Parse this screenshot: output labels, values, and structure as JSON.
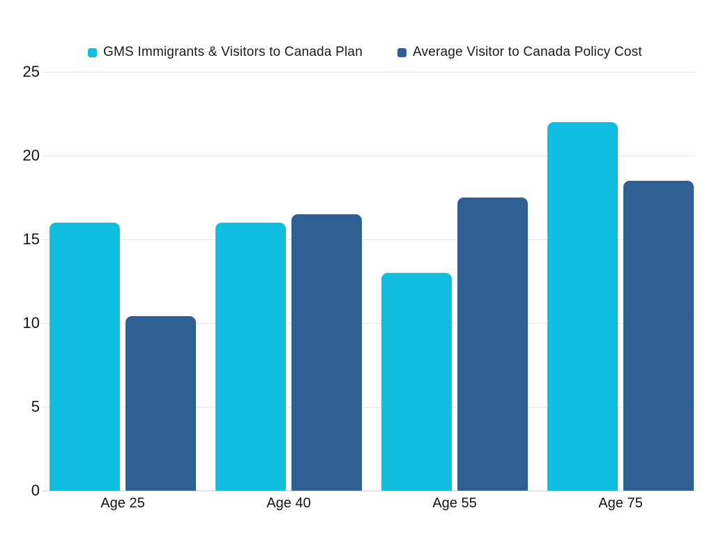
{
  "chart_data": {
    "type": "bar",
    "title": "",
    "xlabel": "",
    "ylabel": "",
    "categories": [
      "Age 25",
      "Age 40",
      "Age 55",
      "Age 75"
    ],
    "series": [
      {
        "name": "GMS Immigrants & Visitors to Canada Plan",
        "color": "#10bedf",
        "values": [
          16,
          16,
          13,
          22
        ]
      },
      {
        "name": "Average Visitor to Canada Policy Cost",
        "color": "#305f94",
        "values": [
          10.4,
          16.5,
          17.5,
          18.5
        ]
      }
    ],
    "y_ticks": [
      0,
      5,
      10,
      15,
      20,
      25
    ],
    "ylim": [
      0,
      25
    ],
    "grid": true,
    "legend_position": "top",
    "background": "#ffffff"
  },
  "colors": {
    "gridline": "#e4e4e4",
    "baseline": "#cfcfcf",
    "text": "#141414"
  }
}
